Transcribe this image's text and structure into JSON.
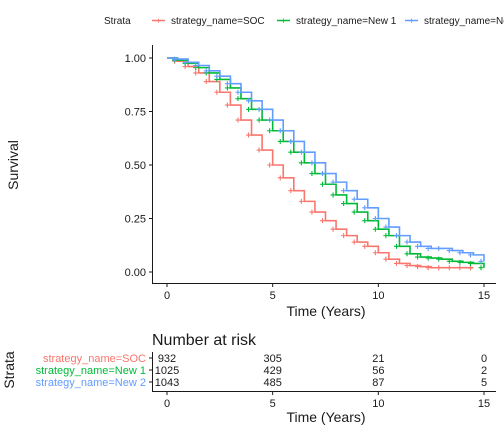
{
  "chart_data": [
    {
      "type": "line",
      "subtype": "kaplan-meier",
      "legend_title": "Strata",
      "legend_position": "top",
      "xlabel": "Time (Years)",
      "ylabel": "Survival",
      "xlim": [
        0,
        15
      ],
      "ylim": [
        0,
        1
      ],
      "xticks": [
        0,
        5,
        10,
        15
      ],
      "yticks": [
        "0.00",
        "0.25",
        "0.50",
        "0.75",
        "1.00"
      ],
      "grid": false,
      "series": [
        {
          "name": "strategy_name=SOC",
          "color": "#F8766D",
          "x": [
            0,
            0.5,
            1,
            1.5,
            2,
            2.5,
            3,
            3.5,
            4,
            4.5,
            5,
            5.5,
            6,
            6.5,
            7,
            7.5,
            8,
            8.5,
            9,
            9.5,
            10,
            10.5,
            11,
            11.5,
            12,
            12.5,
            13,
            13.5,
            14,
            14.5
          ],
          "y": [
            1.0,
            0.985,
            0.96,
            0.93,
            0.89,
            0.84,
            0.78,
            0.71,
            0.64,
            0.57,
            0.5,
            0.44,
            0.38,
            0.33,
            0.28,
            0.24,
            0.2,
            0.17,
            0.14,
            0.12,
            0.09,
            0.06,
            0.04,
            0.03,
            0.025,
            0.02,
            0.02,
            0.02,
            0.02,
            0.02
          ]
        },
        {
          "name": "strategy_name=New 1",
          "color": "#00BA38",
          "x": [
            0,
            0.5,
            1,
            1.5,
            2,
            2.5,
            3,
            3.5,
            4,
            4.5,
            5,
            5.5,
            6,
            6.5,
            7,
            7.5,
            8,
            8.5,
            9,
            9.5,
            10,
            10.5,
            11,
            11.5,
            12,
            12.5,
            13,
            13.5,
            14,
            14.5,
            15
          ],
          "y": [
            1.0,
            0.99,
            0.975,
            0.955,
            0.93,
            0.9,
            0.86,
            0.81,
            0.76,
            0.71,
            0.66,
            0.61,
            0.56,
            0.51,
            0.46,
            0.41,
            0.36,
            0.32,
            0.28,
            0.24,
            0.2,
            0.17,
            0.12,
            0.085,
            0.07,
            0.065,
            0.06,
            0.05,
            0.045,
            0.04,
            0.02
          ]
        },
        {
          "name": "strategy_name=New 2",
          "color": "#619CFF",
          "x": [
            0,
            0.5,
            1,
            1.5,
            2,
            2.5,
            3,
            3.5,
            4,
            4.5,
            5,
            5.5,
            6,
            6.5,
            7,
            7.5,
            8,
            8.5,
            9,
            9.5,
            10,
            10.5,
            11,
            11.5,
            12,
            12.5,
            13,
            13.5,
            14,
            14.5,
            15
          ],
          "y": [
            1.0,
            0.995,
            0.98,
            0.965,
            0.94,
            0.915,
            0.88,
            0.84,
            0.8,
            0.76,
            0.71,
            0.66,
            0.61,
            0.56,
            0.51,
            0.46,
            0.42,
            0.38,
            0.34,
            0.3,
            0.25,
            0.21,
            0.17,
            0.14,
            0.12,
            0.11,
            0.11,
            0.1,
            0.09,
            0.08,
            0.05
          ]
        }
      ]
    },
    {
      "type": "table",
      "title": "Number at risk",
      "row_axis_label": "Strata",
      "xlabel": "Time (Years)",
      "xticks": [
        0,
        5,
        10,
        15
      ],
      "rows": [
        {
          "name": "strategy_name=SOC",
          "color": "#F8766D",
          "values": [
            "932",
            "305",
            "21",
            "0"
          ]
        },
        {
          "name": "strategy_name=New 1",
          "color": "#00BA38",
          "values": [
            "1025",
            "429",
            "56",
            "2"
          ]
        },
        {
          "name": "strategy_name=New 2",
          "color": "#619CFF",
          "values": [
            "1043",
            "485",
            "87",
            "5"
          ]
        }
      ]
    }
  ]
}
